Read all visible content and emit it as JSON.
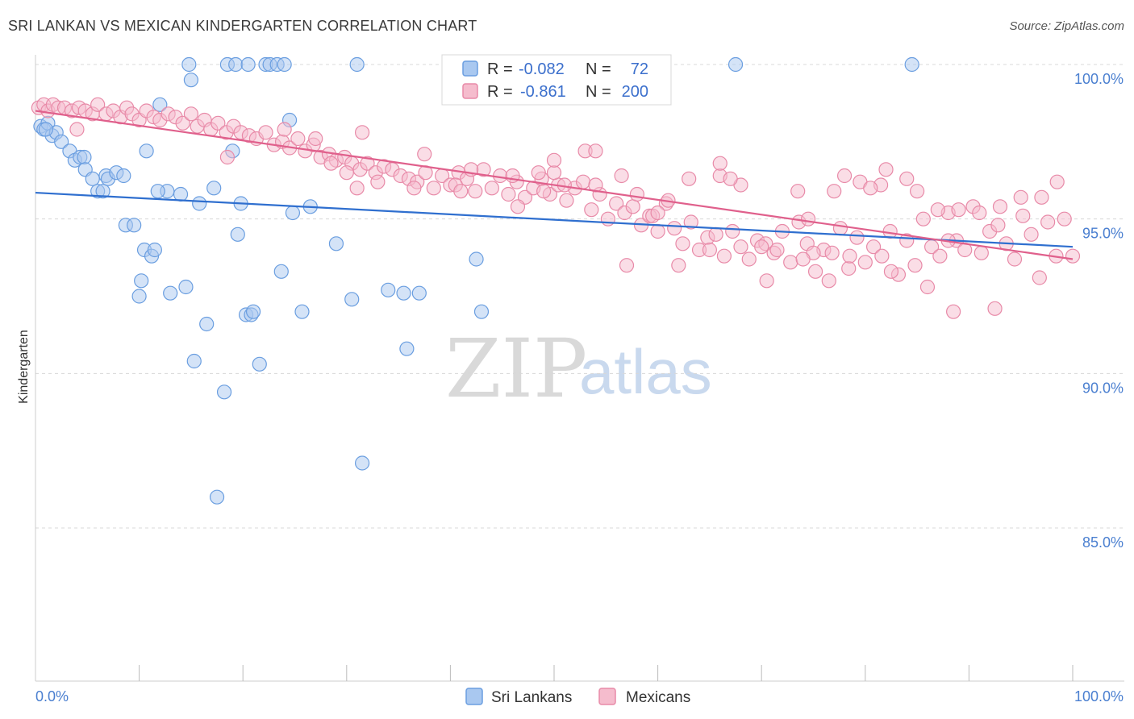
{
  "title": "SRI LANKAN VS MEXICAN KINDERGARTEN CORRELATION CHART",
  "source": "Source: ZipAtlas.com",
  "watermark": {
    "zip": "ZIP",
    "atlas": "atlas"
  },
  "colors": {
    "blue": "#6a9ee0",
    "blue_fill": "#a9c8f0",
    "blue_line": "#2f6fcf",
    "pink": "#e88aa8",
    "pink_fill": "#f5bccd",
    "pink_line": "#e0608c",
    "tick_label": "#4a7fd0",
    "grid": "#d8d8d8"
  },
  "legend": {
    "rows": [
      {
        "r_label": "R =",
        "r_value": "-0.082",
        "n_label": "N =",
        "n_value": "72"
      },
      {
        "r_label": "R =",
        "r_value": "-0.861",
        "n_label": "N =",
        "n_value": "200"
      }
    ]
  },
  "chart_data": {
    "type": "scatter",
    "ylabel": "Kindergarten",
    "xlim": [
      0,
      100
    ],
    "ylim": [
      80.7,
      100.7
    ],
    "x_tick_labels": [
      "0.0%",
      "100.0%"
    ],
    "y_ticks": [
      {
        "value": 100,
        "label": "100.0%"
      },
      {
        "value": 95,
        "label": "95.0%"
      },
      {
        "value": 90,
        "label": "90.0%"
      },
      {
        "value": 85,
        "label": "85.0%"
      }
    ],
    "grid": "horizontal dashed",
    "series": [
      {
        "name": "Sri Lankans",
        "color": "blue",
        "trend": [
          [
            0,
            95.85
          ],
          [
            100,
            94.1
          ]
        ],
        "points": [
          [
            0.5,
            98.0
          ],
          [
            0.8,
            97.9
          ],
          [
            1.2,
            98.1
          ],
          [
            1.6,
            97.7
          ],
          [
            2.0,
            97.8
          ],
          [
            2.5,
            97.5
          ],
          [
            3.3,
            97.2
          ],
          [
            3.8,
            96.9
          ],
          [
            4.3,
            97.0
          ],
          [
            4.7,
            97.0
          ],
          [
            4.8,
            96.6
          ],
          [
            5.5,
            96.3
          ],
          [
            6.0,
            95.9
          ],
          [
            6.5,
            95.9
          ],
          [
            6.8,
            96.4
          ],
          [
            7.0,
            96.3
          ],
          [
            7.8,
            96.5
          ],
          [
            8.5,
            96.4
          ],
          [
            8.7,
            94.8
          ],
          [
            9.5,
            94.8
          ],
          [
            10.2,
            93.0
          ],
          [
            10.0,
            92.5
          ],
          [
            10.5,
            94.0
          ],
          [
            11.2,
            93.8
          ],
          [
            11.5,
            94.0
          ],
          [
            10.7,
            97.2
          ],
          [
            12.0,
            98.7
          ],
          [
            12.7,
            95.9
          ],
          [
            13.0,
            92.6
          ],
          [
            14.0,
            95.8
          ],
          [
            14.5,
            92.8
          ],
          [
            15.0,
            99.5
          ],
          [
            15.3,
            90.4
          ],
          [
            15.8,
            95.5
          ],
          [
            16.5,
            91.6
          ],
          [
            17.2,
            96.0
          ],
          [
            17.5,
            86.0
          ],
          [
            18.2,
            89.4
          ],
          [
            18.5,
            100.0
          ],
          [
            19.0,
            97.2
          ],
          [
            19.3,
            100.0
          ],
          [
            19.5,
            94.5
          ],
          [
            19.8,
            95.5
          ],
          [
            20.3,
            91.9
          ],
          [
            20.8,
            91.9
          ],
          [
            21.0,
            92.0
          ],
          [
            21.6,
            90.3
          ],
          [
            22.2,
            100.0
          ],
          [
            22.6,
            100.0
          ],
          [
            23.3,
            100.0
          ],
          [
            24.0,
            100.0
          ],
          [
            23.7,
            93.3
          ],
          [
            24.5,
            98.2
          ],
          [
            24.8,
            95.2
          ],
          [
            25.7,
            92.0
          ],
          [
            26.5,
            95.4
          ],
          [
            29.0,
            94.2
          ],
          [
            30.5,
            92.4
          ],
          [
            31.0,
            100.0
          ],
          [
            31.5,
            87.1
          ],
          [
            34.0,
            92.7
          ],
          [
            35.5,
            92.6
          ],
          [
            35.8,
            90.8
          ],
          [
            37.0,
            92.6
          ],
          [
            42.5,
            93.7
          ],
          [
            43.0,
            92.0
          ],
          [
            67.5,
            100.0
          ],
          [
            84.5,
            100.0
          ],
          [
            14.8,
            100.0
          ],
          [
            20.5,
            100.0
          ],
          [
            1.0,
            97.9
          ],
          [
            11.8,
            95.9
          ]
        ]
      },
      {
        "name": "Mexicans",
        "color": "pink",
        "trend": [
          [
            0,
            98.5
          ],
          [
            100,
            93.7
          ]
        ],
        "points": [
          [
            0.3,
            98.6
          ],
          [
            0.8,
            98.7
          ],
          [
            1.2,
            98.5
          ],
          [
            1.7,
            98.7
          ],
          [
            2.2,
            98.6
          ],
          [
            2.8,
            98.6
          ],
          [
            3.5,
            98.5
          ],
          [
            4.2,
            98.6
          ],
          [
            4.8,
            98.5
          ],
          [
            5.5,
            98.4
          ],
          [
            6.0,
            98.7
          ],
          [
            6.8,
            98.4
          ],
          [
            7.5,
            98.5
          ],
          [
            8.2,
            98.3
          ],
          [
            8.8,
            98.6
          ],
          [
            9.3,
            98.4
          ],
          [
            10.0,
            98.2
          ],
          [
            10.7,
            98.5
          ],
          [
            11.4,
            98.3
          ],
          [
            12.0,
            98.2
          ],
          [
            12.8,
            98.4
          ],
          [
            13.5,
            98.3
          ],
          [
            14.2,
            98.1
          ],
          [
            15.0,
            98.4
          ],
          [
            15.6,
            98.0
          ],
          [
            16.3,
            98.2
          ],
          [
            16.9,
            97.9
          ],
          [
            17.6,
            98.1
          ],
          [
            18.4,
            97.8
          ],
          [
            19.1,
            98.0
          ],
          [
            19.8,
            97.8
          ],
          [
            20.6,
            97.7
          ],
          [
            21.3,
            97.6
          ],
          [
            22.2,
            97.8
          ],
          [
            23.0,
            97.4
          ],
          [
            23.8,
            97.5
          ],
          [
            24.5,
            97.3
          ],
          [
            25.3,
            97.6
          ],
          [
            26.0,
            97.2
          ],
          [
            26.8,
            97.4
          ],
          [
            27.5,
            97.0
          ],
          [
            28.3,
            97.1
          ],
          [
            29.0,
            96.9
          ],
          [
            29.8,
            97.0
          ],
          [
            30.5,
            96.8
          ],
          [
            31.3,
            96.6
          ],
          [
            32.0,
            96.8
          ],
          [
            32.8,
            96.5
          ],
          [
            33.6,
            96.7
          ],
          [
            34.4,
            96.6
          ],
          [
            35.2,
            96.4
          ],
          [
            36.0,
            96.3
          ],
          [
            36.8,
            96.2
          ],
          [
            37.6,
            96.5
          ],
          [
            38.4,
            96.0
          ],
          [
            39.2,
            96.4
          ],
          [
            40.0,
            96.1
          ],
          [
            40.8,
            96.5
          ],
          [
            41.6,
            96.3
          ],
          [
            42.4,
            95.9
          ],
          [
            43.2,
            96.6
          ],
          [
            44.0,
            96.0
          ],
          [
            44.8,
            96.4
          ],
          [
            45.6,
            95.8
          ],
          [
            46.4,
            96.2
          ],
          [
            47.2,
            95.7
          ],
          [
            48.0,
            96.0
          ],
          [
            48.8,
            96.3
          ],
          [
            49.6,
            95.8
          ],
          [
            50.4,
            96.1
          ],
          [
            51.2,
            95.6
          ],
          [
            52.0,
            96.0
          ],
          [
            52.8,
            96.2
          ],
          [
            53.6,
            95.3
          ],
          [
            54.4,
            95.8
          ],
          [
            55.2,
            95.0
          ],
          [
            56.0,
            95.5
          ],
          [
            56.8,
            95.2
          ],
          [
            57.6,
            95.4
          ],
          [
            58.4,
            94.8
          ],
          [
            59.2,
            95.1
          ],
          [
            60.0,
            94.6
          ],
          [
            60.8,
            95.5
          ],
          [
            61.6,
            94.7
          ],
          [
            62.4,
            94.2
          ],
          [
            63.2,
            94.9
          ],
          [
            64.0,
            94.0
          ],
          [
            64.8,
            94.4
          ],
          [
            65.6,
            94.5
          ],
          [
            66.4,
            93.8
          ],
          [
            67.2,
            94.6
          ],
          [
            68.0,
            94.1
          ],
          [
            68.8,
            93.7
          ],
          [
            69.6,
            94.3
          ],
          [
            70.4,
            94.2
          ],
          [
            71.2,
            93.9
          ],
          [
            72.0,
            94.6
          ],
          [
            72.8,
            93.6
          ],
          [
            73.6,
            94.9
          ],
          [
            74.4,
            94.2
          ],
          [
            75.2,
            93.3
          ],
          [
            76.0,
            94.0
          ],
          [
            76.8,
            93.9
          ],
          [
            77.6,
            94.7
          ],
          [
            78.4,
            93.4
          ],
          [
            79.2,
            94.4
          ],
          [
            80.0,
            93.6
          ],
          [
            80.8,
            94.1
          ],
          [
            81.6,
            93.8
          ],
          [
            82.4,
            94.6
          ],
          [
            83.2,
            93.2
          ],
          [
            84.0,
            94.3
          ],
          [
            84.8,
            93.5
          ],
          [
            85.6,
            95.0
          ],
          [
            86.4,
            94.1
          ],
          [
            87.2,
            93.8
          ],
          [
            88.0,
            95.2
          ],
          [
            88.8,
            94.3
          ],
          [
            89.6,
            94.0
          ],
          [
            90.4,
            95.4
          ],
          [
            91.2,
            93.9
          ],
          [
            92.0,
            94.6
          ],
          [
            92.8,
            94.8
          ],
          [
            93.6,
            94.2
          ],
          [
            94.4,
            93.7
          ],
          [
            95.2,
            95.1
          ],
          [
            96.0,
            94.5
          ],
          [
            96.8,
            93.1
          ],
          [
            97.6,
            94.9
          ],
          [
            98.4,
            93.8
          ],
          [
            99.2,
            95.0
          ],
          [
            100.0,
            93.8
          ],
          [
            4.0,
            97.9
          ],
          [
            18.5,
            97.0
          ],
          [
            24.0,
            97.9
          ],
          [
            27.0,
            97.6
          ],
          [
            28.5,
            96.8
          ],
          [
            31.5,
            97.8
          ],
          [
            30.0,
            96.5
          ],
          [
            31.0,
            96.0
          ],
          [
            33.0,
            96.2
          ],
          [
            36.5,
            96.0
          ],
          [
            37.5,
            97.1
          ],
          [
            40.5,
            96.1
          ],
          [
            41.0,
            95.9
          ],
          [
            42.0,
            96.6
          ],
          [
            46.0,
            96.4
          ],
          [
            46.5,
            95.4
          ],
          [
            48.5,
            96.5
          ],
          [
            49.0,
            95.9
          ],
          [
            50.0,
            96.5
          ],
          [
            51.0,
            96.1
          ],
          [
            53.0,
            97.2
          ],
          [
            54.0,
            96.1
          ],
          [
            56.5,
            96.4
          ],
          [
            58.0,
            95.8
          ],
          [
            59.5,
            95.1
          ],
          [
            61.0,
            95.6
          ],
          [
            63.0,
            96.3
          ],
          [
            65.0,
            94.0
          ],
          [
            66.0,
            96.4
          ],
          [
            68.0,
            96.1
          ],
          [
            70.0,
            94.1
          ],
          [
            71.5,
            94.0
          ],
          [
            73.5,
            95.9
          ],
          [
            75.0,
            93.9
          ],
          [
            77.0,
            95.9
          ],
          [
            78.0,
            96.4
          ],
          [
            79.5,
            96.2
          ],
          [
            81.5,
            96.1
          ],
          [
            82.0,
            96.6
          ],
          [
            84.0,
            96.3
          ],
          [
            85.0,
            95.9
          ],
          [
            87.0,
            95.3
          ],
          [
            89.0,
            95.3
          ],
          [
            91.0,
            95.2
          ],
          [
            93.0,
            95.4
          ],
          [
            95.0,
            95.7
          ],
          [
            97.0,
            95.7
          ],
          [
            98.5,
            96.2
          ],
          [
            70.5,
            93.0
          ],
          [
            74.5,
            95.0
          ],
          [
            76.5,
            93.0
          ],
          [
            78.5,
            93.8
          ],
          [
            80.5,
            96.0
          ],
          [
            82.5,
            93.3
          ],
          [
            86.0,
            92.8
          ],
          [
            88.5,
            92.0
          ],
          [
            92.5,
            92.1
          ],
          [
            88.0,
            94.3
          ],
          [
            57.0,
            93.5
          ],
          [
            62.0,
            93.5
          ],
          [
            74.0,
            93.7
          ],
          [
            67.0,
            96.3
          ],
          [
            54.0,
            97.2
          ],
          [
            50.0,
            96.9
          ],
          [
            66.0,
            96.8
          ],
          [
            60.0,
            95.2
          ]
        ]
      }
    ]
  }
}
